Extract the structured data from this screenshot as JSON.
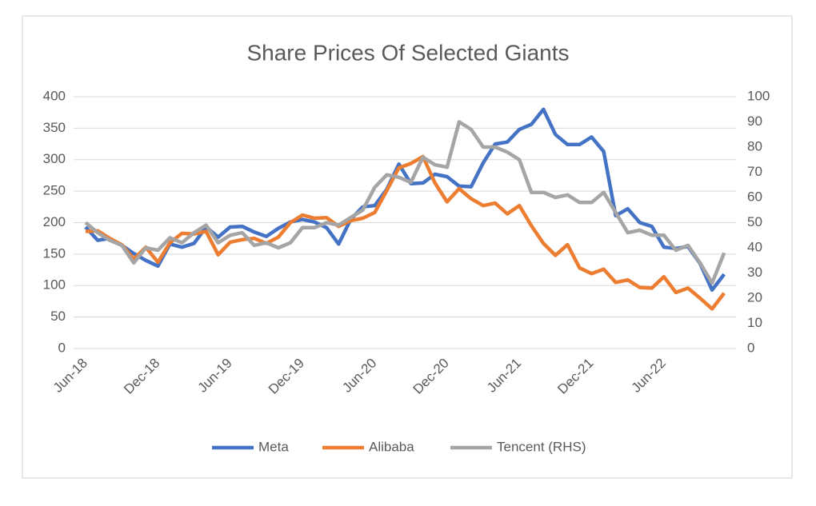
{
  "chart_data": {
    "type": "line",
    "title": "Share Prices Of Selected Giants",
    "categories": [
      "Jun-18",
      null,
      null,
      null,
      null,
      null,
      "Dec-18",
      null,
      null,
      null,
      null,
      null,
      "Jun-19",
      null,
      null,
      null,
      null,
      null,
      "Dec-19",
      null,
      null,
      null,
      null,
      null,
      "Jun-20",
      null,
      null,
      null,
      null,
      null,
      "Dec-20",
      null,
      null,
      null,
      null,
      null,
      "Jun-21",
      null,
      null,
      null,
      null,
      null,
      "Dec-21",
      null,
      null,
      null,
      null,
      null,
      "Jun-22",
      null,
      null,
      null,
      null,
      null
    ],
    "series": [
      {
        "name": "Meta",
        "color": "#4472c4",
        "values": [
          193,
          172,
          175,
          164,
          151,
          140,
          131,
          166,
          161,
          167,
          193,
          177,
          193,
          194,
          185,
          178,
          191,
          201,
          205,
          201,
          192,
          166,
          205,
          225,
          227,
          253,
          293,
          262,
          263,
          277,
          273,
          258,
          257,
          295,
          325,
          328,
          348,
          356,
          380,
          340,
          324,
          324,
          336,
          313,
          211,
          222,
          200,
          194,
          161,
          159,
          162,
          135,
          93,
          118
        ]
      },
      {
        "name": "Alibaba",
        "color": "#ed7d31",
        "values": [
          186,
          187,
          175,
          165,
          142,
          161,
          137,
          168,
          183,
          182,
          186,
          149,
          169,
          173,
          175,
          167,
          177,
          200,
          212,
          207,
          208,
          194,
          203,
          207,
          216,
          251,
          287,
          294,
          305,
          263,
          233,
          254,
          238,
          227,
          231,
          214,
          227,
          195,
          167,
          148,
          165,
          128,
          119,
          126,
          105,
          109,
          97,
          96,
          114,
          89,
          96,
          80,
          63,
          88
        ]
      },
      {
        "name": "Tencent (RHS)",
        "color": "#a5a5a5",
        "axis": "y2",
        "values": [
          50,
          46,
          43,
          41,
          34,
          40,
          39,
          44,
          42,
          46,
          49,
          42,
          45,
          46,
          41,
          42,
          40,
          42,
          48,
          48,
          50,
          49,
          52,
          55,
          64,
          69,
          68,
          66,
          76,
          73,
          72,
          90,
          87,
          80,
          80,
          78,
          75,
          62,
          62,
          60,
          61,
          58,
          58,
          62,
          54,
          46,
          47,
          45,
          45,
          39,
          41,
          34,
          26,
          38
        ]
      }
    ],
    "ylim": [
      0,
      400
    ],
    "yticks": [
      0,
      50,
      100,
      150,
      200,
      250,
      300,
      350,
      400
    ],
    "y2lim": [
      0,
      100
    ],
    "y2ticks": [
      0,
      10,
      20,
      30,
      40,
      50,
      60,
      70,
      80,
      90,
      100
    ],
    "grid": true,
    "legend": "bottom"
  }
}
